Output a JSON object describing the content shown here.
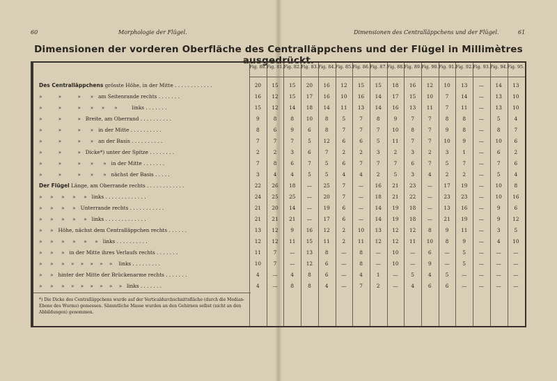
{
  "left_page": {
    "number": "60",
    "running_head": "Morphologie der Flügel."
  },
  "right_page": {
    "number": "61",
    "running_head": "Dimensionen des Centralläppchens und der Flügel."
  },
  "title": "Dimensionen der vorderen Oberfläche des Centralläppchens und der Flügel in Millimètres ausgedrückt.",
  "columns": [
    "Fig. 80.",
    "Fig. 81.",
    "Fig. 82.",
    "Fig. 83.",
    "Fig. 84.",
    "Fig. 85.",
    "Fig. 86.",
    "Fig. 87.",
    "Fig. 88.",
    "Fig. 89.",
    "Fig. 90.",
    "Fig. 91.",
    "Fig. 92.",
    "Fig. 93.",
    "Fig. 94.",
    "Fig. 95."
  ],
  "rows": [
    {
      "bold": "Des Centralläppchens",
      "label": " grösste Höhe, in der Mitte . . . . . . . . . . . .",
      "values": [
        "20",
        "15",
        "15",
        "20",
        "16",
        "12",
        "15",
        "15",
        "18",
        "16",
        "12",
        "10",
        "13",
        "—",
        "14",
        "13"
      ]
    },
    {
      "bold": "",
      "label": "»          »          »      »   am Seitenrande rechts . . . . . . .",
      "values": [
        "16",
        "12",
        "15",
        "17",
        "16",
        "10",
        "16",
        "14",
        "17",
        "15",
        "10",
        "7",
        "14",
        "—",
        "13",
        "10"
      ]
    },
    {
      "bold": "",
      "label": "»          »          »      »     »      »         links . . . . . . .",
      "values": [
        "15",
        "12",
        "14",
        "18",
        "14",
        "11",
        "13",
        "14",
        "16",
        "13",
        "11",
        "7",
        "11",
        "—",
        "13",
        "10"
      ]
    },
    {
      "bold": "",
      "label": "»          »          »   Breite, am Oberrand . . . . . . . . . .",
      "values": [
        "9",
        "8",
        "8",
        "10",
        "8",
        "5",
        "7",
        "8",
        "9",
        "7",
        "7",
        "8",
        "8",
        "—",
        "5",
        "4"
      ]
    },
    {
      "bold": "",
      "label": "»          »          »      »   in der Mitte . . . . . . . . . .",
      "values": [
        "8",
        "6",
        "9",
        "6",
        "8",
        "7",
        "7",
        "7",
        "10",
        "8",
        "7",
        "9",
        "8",
        "—",
        "8",
        "7"
      ]
    },
    {
      "bold": "",
      "label": "»          »          »      »   an der Basis . . . . . . . . . .",
      "values": [
        "7",
        "7",
        "7",
        "5",
        "12",
        "6",
        "6",
        "5",
        "11",
        "7",
        "7",
        "10",
        "9",
        "—",
        "10",
        "6"
      ]
    },
    {
      "bold": "",
      "label": "»          »          »   Dicke*) unter der Spitze . . . . . . . .",
      "values": [
        "2",
        "2",
        "3",
        "6",
        "7",
        "2",
        "2",
        "3",
        "2",
        "3",
        "2",
        "3",
        "1",
        "—",
        "6",
        "2"
      ]
    },
    {
      "bold": "",
      "label": "»          »          »      »      »   in der Mitte . . . . . . .",
      "values": [
        "7",
        "8",
        "6",
        "7",
        "5",
        "6",
        "7",
        "7",
        "7",
        "6",
        "7",
        "5",
        "7",
        "—",
        "7",
        "6"
      ]
    },
    {
      "bold": "",
      "label": "»          »          »      »      »   nächst der Basis . . . . .",
      "values": [
        "3",
        "4",
        "4",
        "5",
        "5",
        "4",
        "4",
        "2",
        "5",
        "3",
        "4",
        "2",
        "2",
        "—",
        "5",
        "4"
      ]
    },
    {
      "bold": "Der Flügel",
      "label": " Länge, am Oberrande rechts . . . . . . . . . . . .",
      "values": [
        "22",
        "26",
        "18",
        "—",
        "25",
        "7",
        "—",
        "16",
        "21",
        "23",
        "—",
        "17",
        "19",
        "—",
        "10",
        "8"
      ]
    },
    {
      "bold": "",
      "label": "»     »     »     »     »   links . . . . . . . . . . . . .",
      "values": [
        "24",
        "25",
        "25",
        "—",
        "20",
        "7",
        "—",
        "18",
        "21",
        "22",
        "—",
        "23",
        "23",
        "—",
        "10",
        "16"
      ]
    },
    {
      "bold": "",
      "label": "»     »     »     »   Unterrande rechts . . . . . . . . . . .",
      "values": [
        "21",
        "20",
        "14",
        "—",
        "19",
        "6",
        "—",
        "14",
        "19",
        "18",
        "—",
        "13",
        "16",
        "—",
        "9",
        "6"
      ]
    },
    {
      "bold": "",
      "label": "»     »     »     »     »   links . . . . . . . . . . . . .",
      "values": [
        "21",
        "21",
        "21",
        "—",
        "17",
        "6",
        "—",
        "14",
        "19",
        "18",
        "—",
        "21",
        "19",
        "—",
        "9",
        "12"
      ]
    },
    {
      "bold": "",
      "label": "»     »   Höhe, nächst dem Centralläppchen rechts . . . . . .",
      "values": [
        "13",
        "12",
        "9",
        "16",
        "12",
        "2",
        "10",
        "13",
        "12",
        "12",
        "8",
        "9",
        "11",
        "—",
        "3",
        "5"
      ]
    },
    {
      "bold": "",
      "label": "»     »     »     »     »     »   links . . . . . . . . . .",
      "values": [
        "12",
        "12",
        "11",
        "15",
        "11",
        "2",
        "11",
        "12",
        "12",
        "11",
        "10",
        "8",
        "9",
        "—",
        "4",
        "10"
      ]
    },
    {
      "bold": "",
      "label": "»     »     »   in der Mitte ihres Verlaufs rechts . . . . . . .",
      "values": [
        "11",
        "7",
        "—",
        "13",
        "8",
        "—",
        "8",
        "—",
        "10",
        "—",
        "6",
        "—",
        "5",
        "—",
        "—",
        "—"
      ]
    },
    {
      "bold": "",
      "label": "»     »     »    »    »    »    »    »    links . . . . . . . . .",
      "values": [
        "10",
        "7",
        "—",
        "12",
        "6",
        "—",
        "8",
        "—",
        "10",
        "—",
        "9",
        "—",
        "5",
        "—",
        "—",
        "—"
      ]
    },
    {
      "bold": "",
      "label": "»     »   hinter der Mitte der Brückenarme rechts . . . . . . .",
      "values": [
        "4",
        "—",
        "4",
        "8",
        "6",
        "—",
        "4",
        "1",
        "—",
        "5",
        "4",
        "5",
        "—",
        "—",
        "—",
        "—"
      ]
    },
    {
      "bold": "",
      "label": "»     »     »    »    »    »    »    »    »   links . . . . . . .",
      "values": [
        "4",
        "—",
        "8",
        "8",
        "4",
        "—",
        "7",
        "2",
        "—",
        "4",
        "6",
        "6",
        "—",
        "—",
        "—",
        "—"
      ]
    }
  ],
  "footnote": "*) Die Dicke des Centralläppchens wurde auf der Verticaldurchschnittsfläche (durch die Median-Ebene des Wurms) gemessen. Sämmtliche Masse wurden an den Gehirnen selbst (nicht an den Abbildungen) genommen."
}
